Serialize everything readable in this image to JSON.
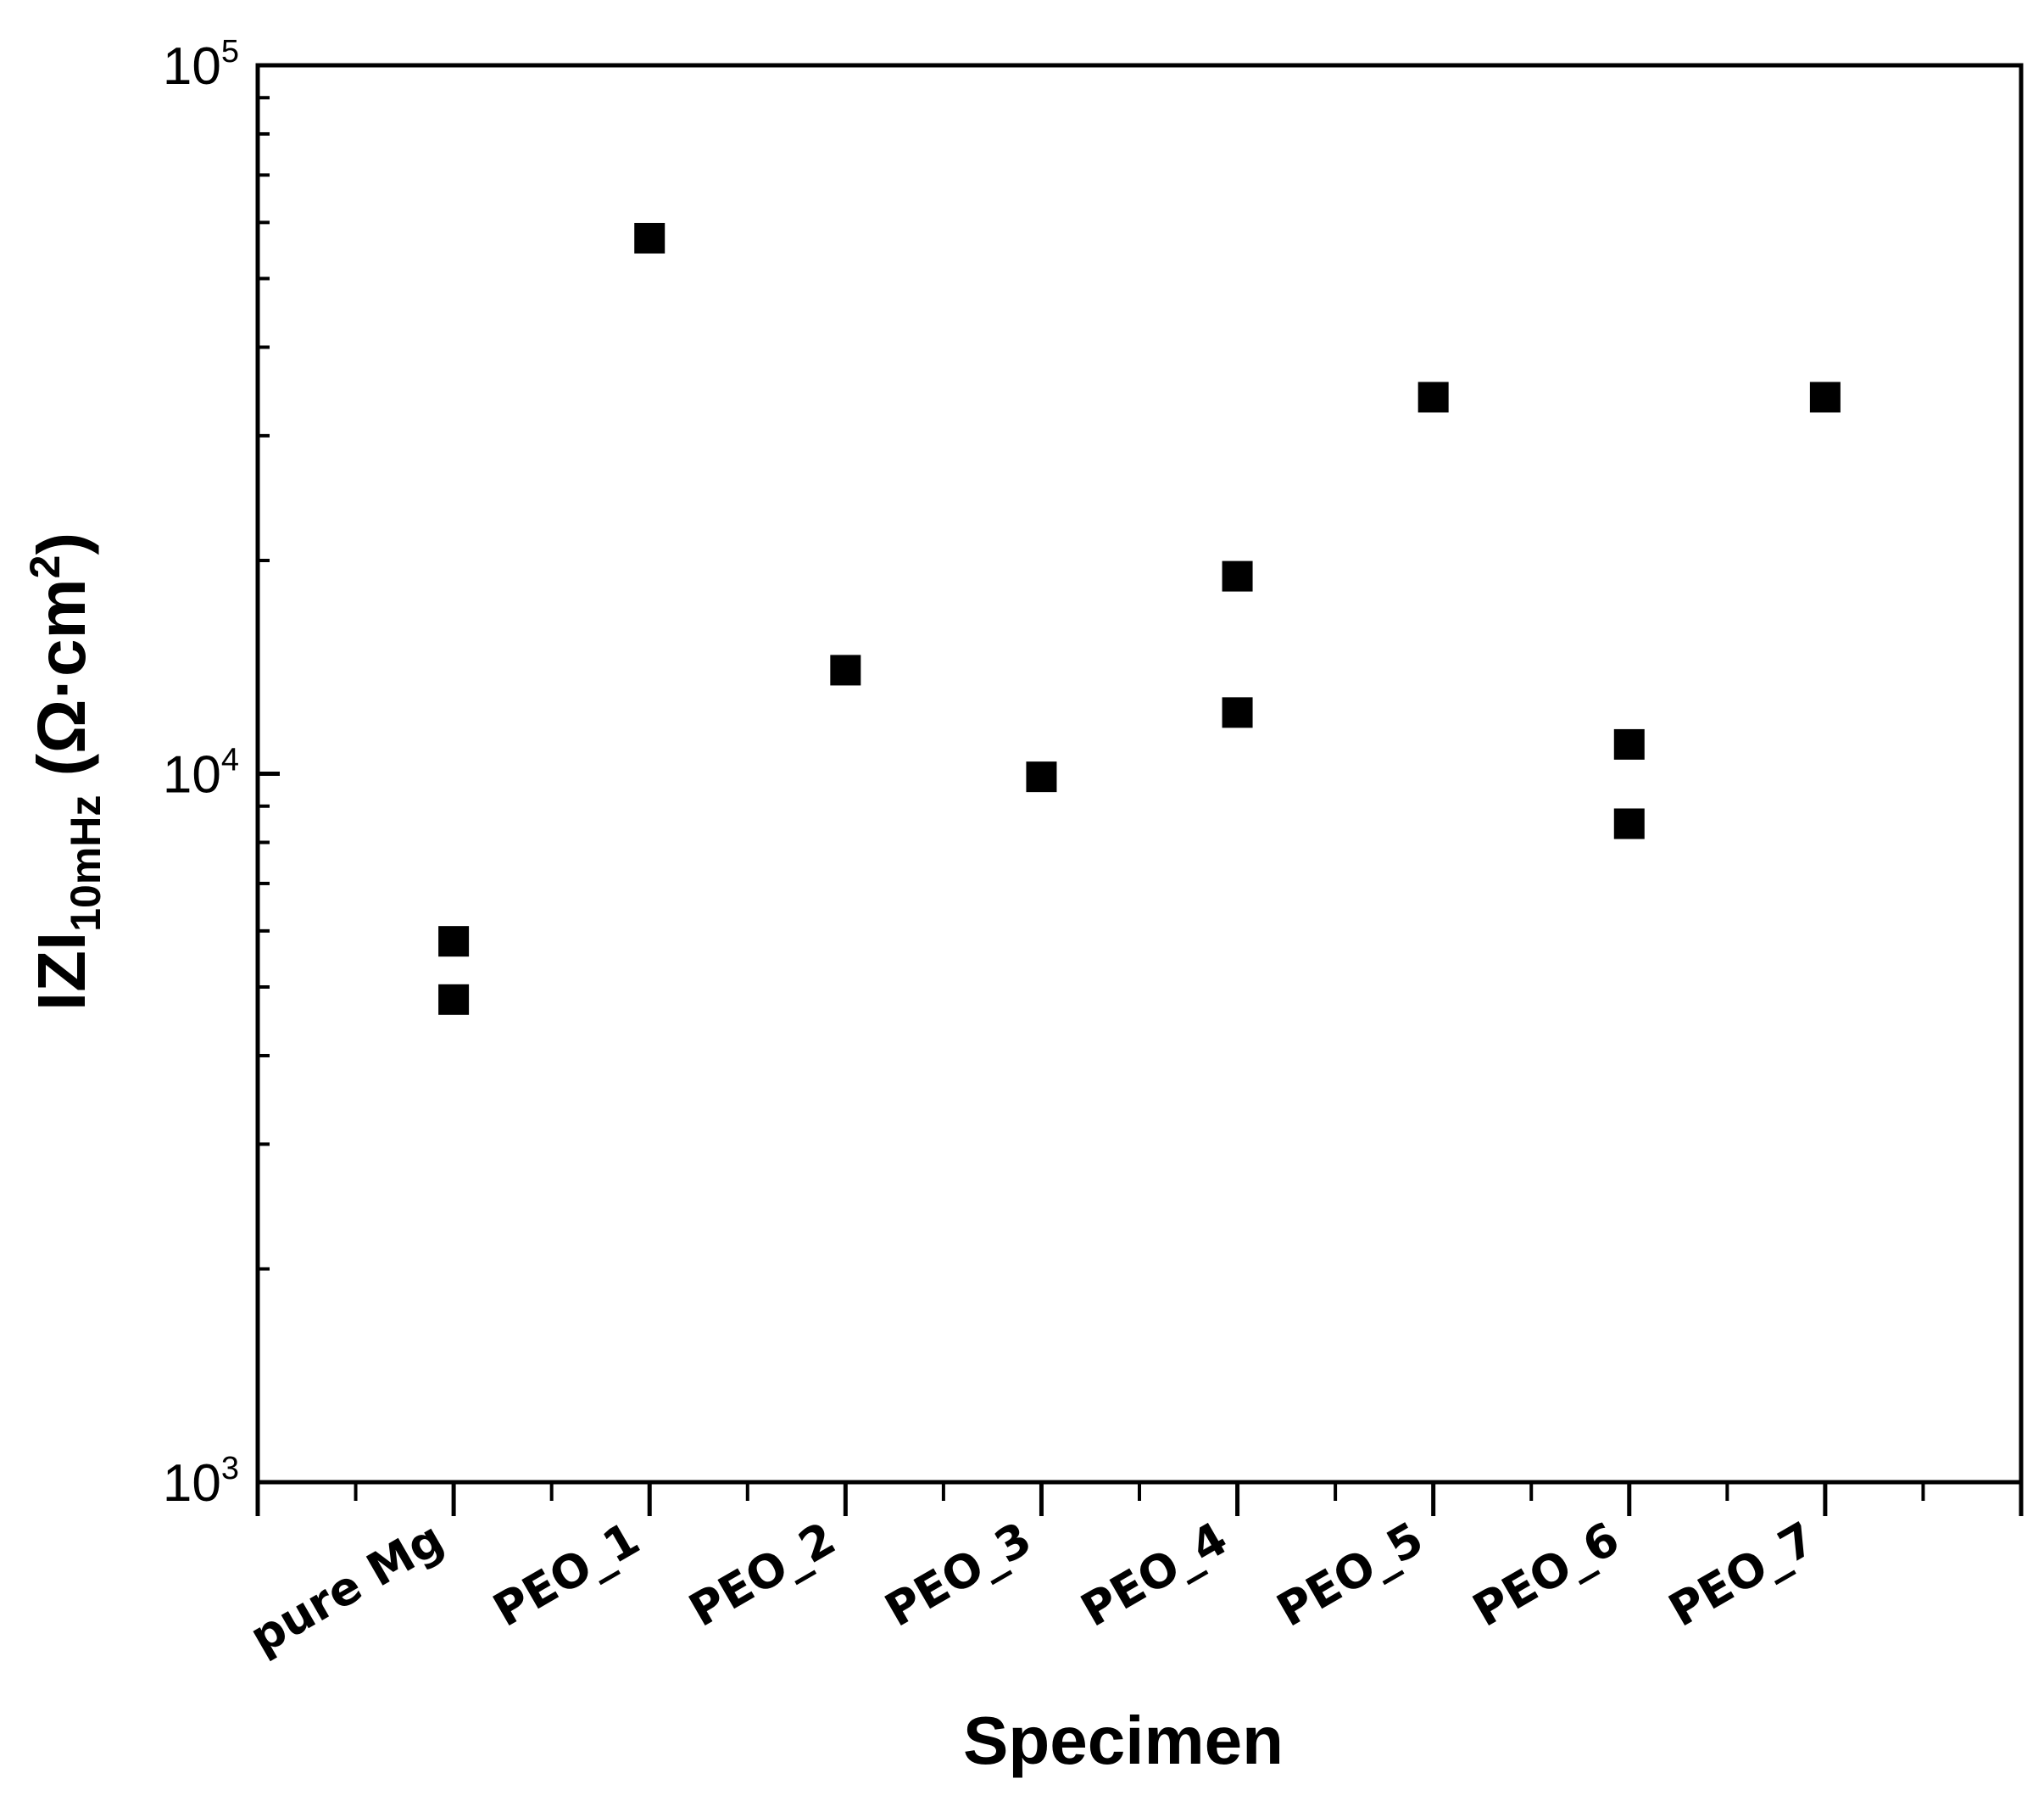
{
  "chart_data": {
    "type": "scatter",
    "categories": [
      "pure Mg",
      "PEO_1",
      "PEO_2",
      "PEO_3",
      "PEO_4",
      "PEO_5",
      "PEO_6",
      "PEO_7"
    ],
    "points": [
      {
        "category": "pure Mg",
        "y": 5800
      },
      {
        "category": "pure Mg",
        "y": 4800
      },
      {
        "category": "PEO_1",
        "y": 57000
      },
      {
        "category": "PEO_2",
        "y": 14000
      },
      {
        "category": "PEO_3",
        "y": 9900
      },
      {
        "category": "PEO_4",
        "y": 19000
      },
      {
        "category": "PEO_4",
        "y": 12200
      },
      {
        "category": "PEO_5",
        "y": 34000
      },
      {
        "category": "PEO_6",
        "y": 11000
      },
      {
        "category": "PEO_6",
        "y": 8500
      },
      {
        "category": "PEO_7",
        "y": 34000
      }
    ],
    "marker": {
      "shape": "square",
      "color": "#000000"
    },
    "y_scale": "log",
    "ylim": [
      1000,
      100000
    ],
    "y_ticks": [
      {
        "base": "10",
        "exp": "3",
        "value": 1000
      },
      {
        "base": "10",
        "exp": "4",
        "value": 10000
      },
      {
        "base": "10",
        "exp": "5",
        "value": 100000
      }
    ],
    "xlabel": "Specimen",
    "ylabel": {
      "main": "IZI",
      "sub": "10mHz",
      "unit_open": " (Ω·cm",
      "unit_sup": "2",
      "unit_close": ")"
    },
    "grid": false,
    "legend": "none"
  }
}
